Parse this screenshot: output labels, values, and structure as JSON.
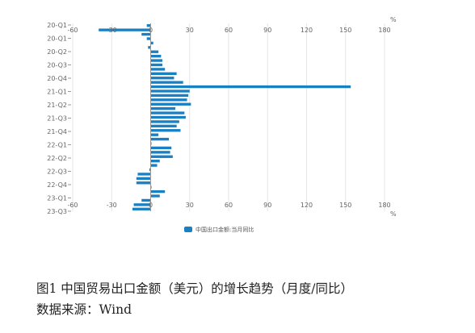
{
  "chart_data": {
    "type": "bar",
    "orientation": "horizontal",
    "unit": "%",
    "xlim": [
      -60,
      180
    ],
    "x_ticks": [
      -60,
      -30,
      0,
      30,
      60,
      90,
      120,
      150,
      180
    ],
    "y_tick_labels": [
      "20-Q1",
      "20-Q1",
      "20-Q2",
      "20-Q3",
      "20-Q4",
      "21-Q1",
      "21-Q2",
      "21-Q3",
      "21-Q4",
      "22-Q1",
      "22-Q2",
      "22-Q3",
      "22-Q4",
      "23-Q1",
      "23-Q3"
    ],
    "series": [
      {
        "name": "中国出口金额:当月同比",
        "color": "#1a80c4",
        "values": [
          -3,
          -40,
          -7,
          -3,
          2,
          -2,
          6,
          8,
          9,
          9,
          11,
          20,
          18,
          25,
          154,
          30,
          29,
          28,
          31,
          19,
          26,
          27,
          22,
          20,
          23,
          6,
          14,
          0,
          16,
          15,
          17,
          7,
          5,
          -1,
          -10,
          -11,
          -11,
          0,
          11,
          7,
          -7,
          -13,
          -14
        ]
      }
    ],
    "grid": "vertical",
    "legend_position": "bottom"
  },
  "caption": "图1  中国贸易出口金额（美元）的增长趋势（月度/同比）",
  "source": "数据来源：Wind"
}
